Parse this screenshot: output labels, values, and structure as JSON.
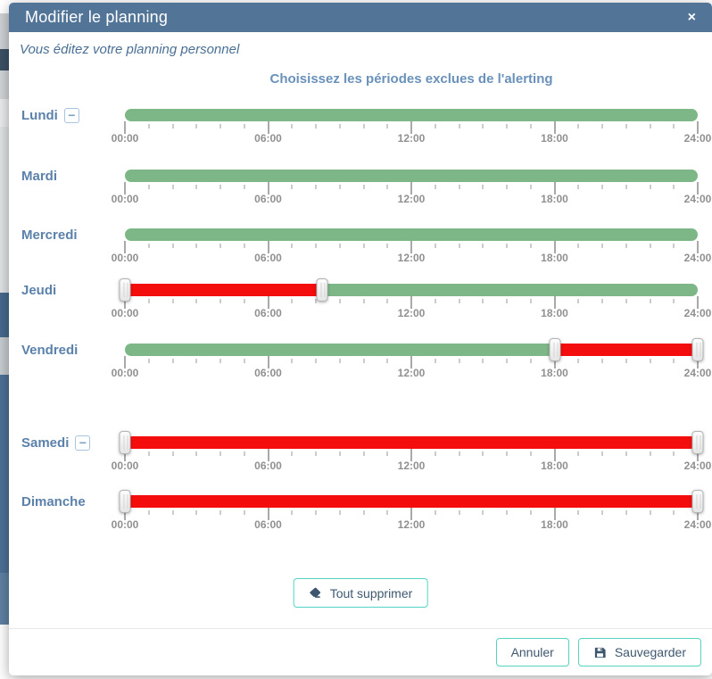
{
  "modal": {
    "title": "Modifier le planning",
    "subtitle": "Vous éditez votre planning personnel",
    "heading": "Choisissez les périodes exclues de l'alerting"
  },
  "icons": {
    "close": "×",
    "minus": "−"
  },
  "slider": {
    "hours": 24,
    "tick_labels": [
      "00:00",
      "06:00",
      "12:00",
      "18:00",
      "24:00"
    ],
    "colors": {
      "included": "#7db787",
      "excluded": "#f40d0d"
    }
  },
  "days": [
    {
      "label": "Lundi",
      "removable": true,
      "segments": [
        {
          "from": "00:00",
          "to": "24:00",
          "state": "included"
        }
      ],
      "handles": []
    },
    {
      "label": "Mardi",
      "removable": false,
      "segments": [
        {
          "from": "00:00",
          "to": "24:00",
          "state": "included"
        }
      ],
      "handles": []
    },
    {
      "label": "Mercredi",
      "removable": false,
      "segments": [
        {
          "from": "00:00",
          "to": "24:00",
          "state": "included"
        }
      ],
      "handles": []
    },
    {
      "label": "Jeudi",
      "removable": false,
      "segments": [
        {
          "from": "00:00",
          "to": "08:15",
          "state": "excluded"
        },
        {
          "from": "08:15",
          "to": "24:00",
          "state": "included"
        }
      ],
      "handles": [
        "00:00",
        "08:15"
      ]
    },
    {
      "label": "Vendredi",
      "removable": false,
      "segments": [
        {
          "from": "00:00",
          "to": "18:00",
          "state": "included"
        },
        {
          "from": "18:00",
          "to": "24:00",
          "state": "excluded"
        }
      ],
      "handles": [
        "18:00",
        "24:00"
      ]
    },
    {
      "label": "Samedi",
      "removable": true,
      "segments": [
        {
          "from": "00:00",
          "to": "24:00",
          "state": "excluded"
        }
      ],
      "handles": [
        "00:00",
        "24:00"
      ]
    },
    {
      "label": "Dimanche",
      "removable": false,
      "segments": [
        {
          "from": "00:00",
          "to": "24:00",
          "state": "excluded"
        }
      ],
      "handles": [
        "00:00",
        "24:00"
      ]
    }
  ],
  "buttons": {
    "clear_all": "Tout supprimer",
    "cancel": "Annuler",
    "save": "Sauvegarder"
  },
  "theme": {
    "header_bg": "#527497",
    "accent_teal": "#54d3c2",
    "button_text": "#3f586f",
    "day_label_blue": "#5b81aa",
    "heading_blue": "#6a91ba",
    "subtitle_blue": "#4a6f94",
    "tick_label_gray": "#909090"
  }
}
